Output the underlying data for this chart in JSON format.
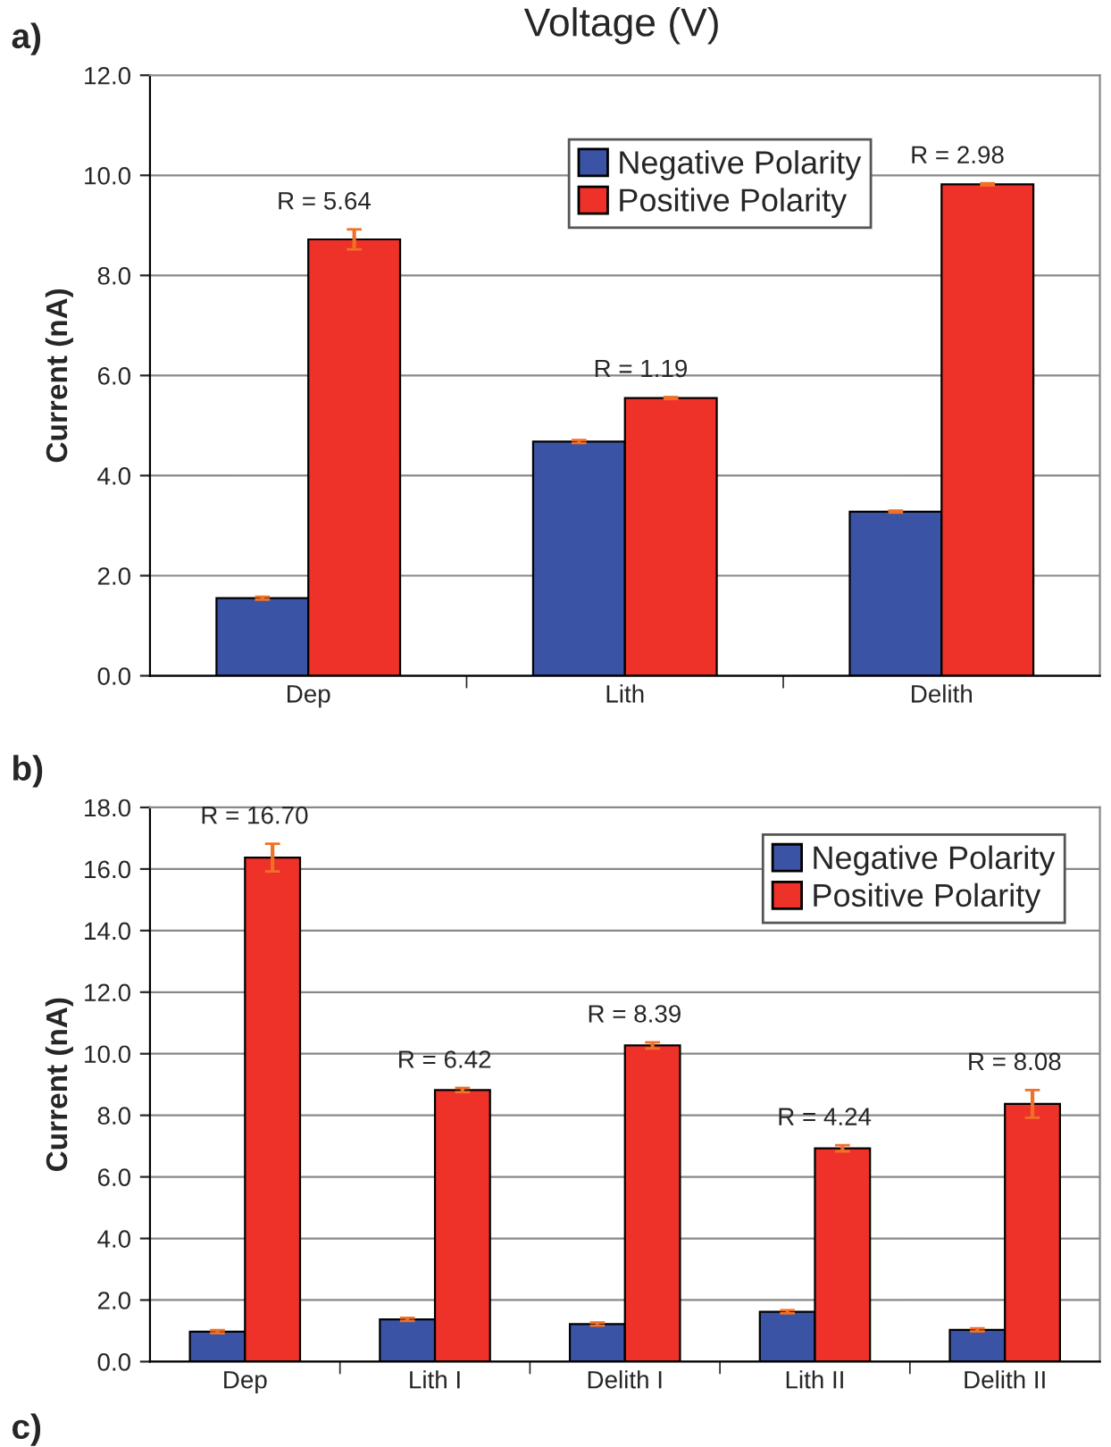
{
  "chart_data": [
    {
      "type": "bar",
      "title": "Voltage (V)",
      "ylabel": "Current (nA)",
      "categories": [
        "Dep",
        "Lith",
        "Delith"
      ],
      "series": [
        {
          "name": "Negative Polarity",
          "color": "#3a53a4",
          "values": [
            1.55,
            4.68,
            3.28
          ],
          "errors": [
            0.03,
            0.03,
            0.02
          ]
        },
        {
          "name": "Positive Polarity",
          "color": "#ee3129",
          "values": [
            8.72,
            5.55,
            9.82
          ],
          "errors": [
            0.2,
            0.02,
            0.02
          ]
        }
      ],
      "ylim": [
        0,
        12
      ],
      "yticks": [
        {
          "value": 0,
          "label": "0.0"
        },
        {
          "value": 2,
          "label": "2.0"
        },
        {
          "value": 4,
          "label": "4.0"
        },
        {
          "value": 6,
          "label": "6.0"
        },
        {
          "value": 8,
          "label": "8.0"
        },
        {
          "value": 10,
          "label": "10.0"
        },
        {
          "value": 12,
          "label": "12.0"
        }
      ],
      "grid": "y",
      "legend": "top",
      "annotations": [
        "a)",
        "R = 5.64",
        "R = 1.19",
        "R = 2.98"
      ]
    },
    {
      "type": "bar",
      "ylabel": "Current (nA)",
      "categories": [
        "Dep",
        "Lith I",
        "Delith I",
        "Lith II",
        "Delith II"
      ],
      "series": [
        {
          "name": "Negative Polarity",
          "color": "#3a53a4",
          "values": [
            0.97,
            1.37,
            1.22,
            1.62,
            1.03
          ],
          "errors": [
            0.05,
            0.05,
            0.05,
            0.05,
            0.05
          ]
        },
        {
          "name": "Positive Polarity",
          "color": "#ee3129",
          "values": [
            16.37,
            8.82,
            10.27,
            6.93,
            8.37
          ],
          "errors": [
            0.45,
            0.07,
            0.1,
            0.1,
            0.45
          ]
        }
      ],
      "ylim": [
        0,
        18
      ],
      "yticks": [
        {
          "value": 0,
          "label": "0.0"
        },
        {
          "value": 2,
          "label": "2.0"
        },
        {
          "value": 4,
          "label": "4.0"
        },
        {
          "value": 6,
          "label": "6.0"
        },
        {
          "value": 8,
          "label": "8.0"
        },
        {
          "value": 10,
          "label": "10.0"
        },
        {
          "value": 12,
          "label": "12.0"
        },
        {
          "value": 14,
          "label": "14.0"
        },
        {
          "value": 16,
          "label": "16.0"
        },
        {
          "value": 18,
          "label": "18.0"
        }
      ],
      "grid": "y",
      "legend": "top right",
      "annotations": [
        "b)",
        "c)",
        "R = 16.70",
        "R = 6.42",
        "R = 8.39",
        "R = 4.24",
        "R = 8.08"
      ]
    }
  ]
}
